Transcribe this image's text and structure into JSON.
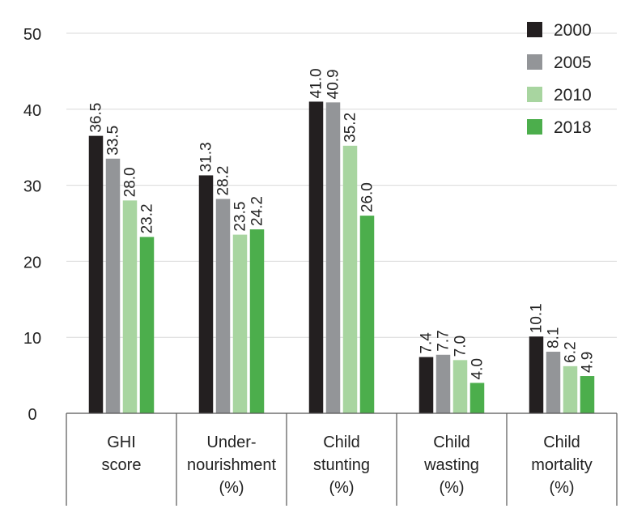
{
  "chart_data": {
    "type": "bar",
    "categories": [
      [
        "GHI",
        "score"
      ],
      [
        "Under-",
        "nourishment",
        "(%)"
      ],
      [
        "Child",
        "stunting",
        "(%)"
      ],
      [
        "Child",
        "wasting",
        "(%)"
      ],
      [
        "Child",
        "mortality",
        "(%)"
      ]
    ],
    "series": [
      {
        "name": "2000",
        "color": "#231f20",
        "values": [
          36.5,
          31.3,
          41.0,
          7.4,
          10.1
        ],
        "labels": [
          "36.5",
          "31.3",
          "41.0",
          "7.4",
          "10.1"
        ]
      },
      {
        "name": "2005",
        "color": "#939598",
        "values": [
          33.5,
          28.2,
          40.9,
          7.7,
          8.1
        ],
        "labels": [
          "33.5",
          "28.2",
          "40.9",
          "7.7",
          "8.1"
        ]
      },
      {
        "name": "2010",
        "color": "#a8d5a0",
        "values": [
          28.0,
          23.5,
          35.2,
          7.0,
          6.2
        ],
        "labels": [
          "28.0",
          "23.5",
          "35.2",
          "7.0",
          "6.2"
        ]
      },
      {
        "name": "2018",
        "color": "#4cae4c",
        "values": [
          23.2,
          24.2,
          26.0,
          4.0,
          4.9
        ],
        "labels": [
          "23.2",
          "24.2",
          "26.0",
          "4.0",
          "4.9"
        ]
      }
    ],
    "y_ticks": [
      "0",
      "10",
      "20",
      "30",
      "40",
      "50"
    ],
    "ylim": [
      0,
      50
    ],
    "grid": true,
    "legend_position": "top-right"
  }
}
